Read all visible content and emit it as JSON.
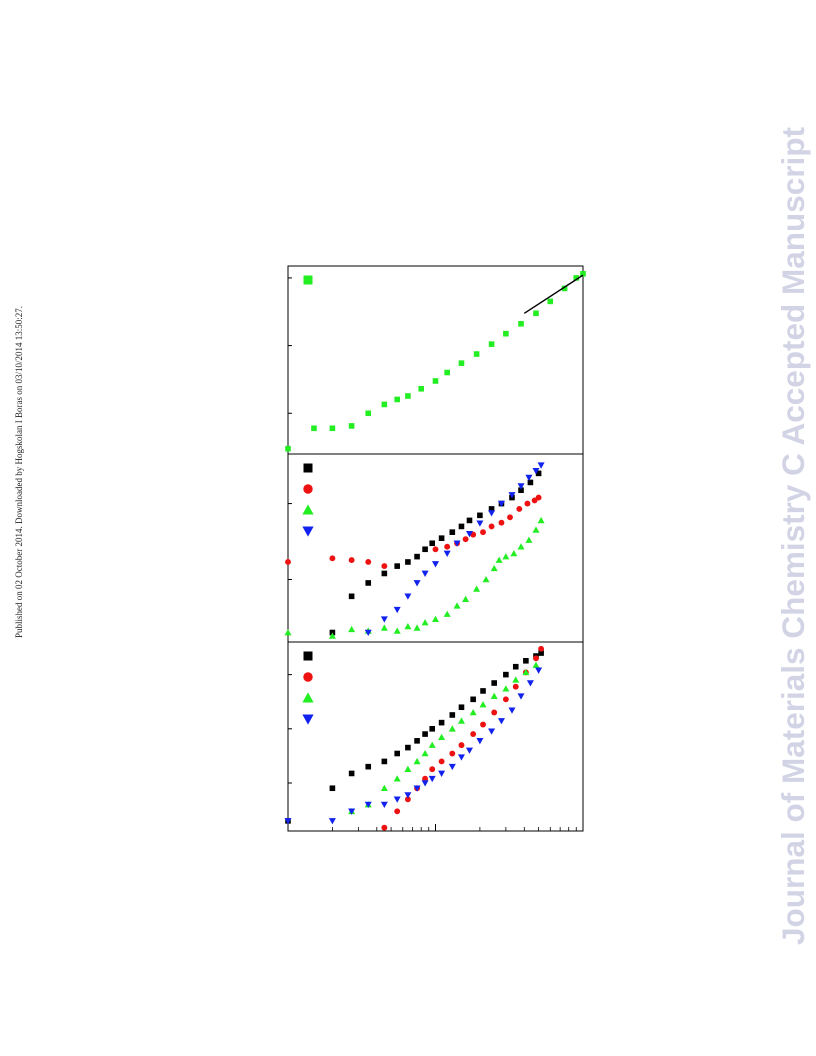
{
  "header_note": "Published on 02 October 2014. Downloaded by Hogskolan I Boras on 03/10/2014 13:50:27.",
  "watermark": {
    "text": "Journal of Materials Chemistry C Accepted Manuscript",
    "color": "#d2d4e6"
  },
  "colors": {
    "black": "#000000",
    "red": "#ee1111",
    "green": "#22ee22",
    "blue": "#1122ee"
  },
  "chart_data": [
    {
      "panel": "top",
      "type": "scatter",
      "x_scale": "log",
      "y_scale": "log",
      "grid": false,
      "legend": "top-left",
      "series": [
        {
          "marker": "square",
          "color": "green",
          "x": [
            1.0,
            1.5,
            2.0,
            2.7,
            3.5,
            4.5,
            5.5,
            6.5,
            8.0,
            10,
            12,
            15,
            19,
            24,
            30,
            38,
            48,
            60,
            75,
            90,
            100
          ],
          "y": [
            0.3,
            0.6,
            0.6,
            0.65,
            1.0,
            1.35,
            1.6,
            1.8,
            2.3,
            3.0,
            4.0,
            5.5,
            7.5,
            10.5,
            15,
            21,
            30,
            45,
            70,
            100,
            115
          ]
        }
      ],
      "fit_line": {
        "x": [
          40,
          100
        ],
        "y": [
          30,
          110
        ]
      }
    },
    {
      "panel": "middle",
      "type": "scatter",
      "x_scale": "log",
      "y_scale": "log",
      "grid": false,
      "legend": "top-left",
      "series": [
        {
          "marker": "square",
          "color": "black",
          "x": [
            2.0,
            2.7,
            3.5,
            4.5,
            5.5,
            6.5,
            7.5,
            8.5,
            9.5,
            11,
            13,
            15,
            17,
            20,
            24,
            28,
            33,
            38,
            44,
            50
          ],
          "y": [
            0.002,
            0.006,
            0.009,
            0.012,
            0.015,
            0.017,
            0.02,
            0.025,
            0.03,
            0.035,
            0.042,
            0.05,
            0.06,
            0.07,
            0.085,
            0.1,
            0.12,
            0.15,
            0.19,
            0.25
          ]
        },
        {
          "marker": "circle",
          "color": "red",
          "x": [
            1.0,
            2.0,
            2.7,
            3.5,
            4.5,
            10,
            12,
            14,
            16,
            18,
            21,
            24,
            28,
            32,
            37,
            42,
            47,
            50
          ],
          "y": [
            0.017,
            0.019,
            0.018,
            0.017,
            0.015,
            0.025,
            0.027,
            0.03,
            0.034,
            0.039,
            0.042,
            0.05,
            0.056,
            0.066,
            0.085,
            0.1,
            0.11,
            0.12
          ]
        },
        {
          "marker": "triangle-up",
          "color": "green",
          "x": [
            1.0,
            2.0,
            2.7,
            3.5,
            4.5,
            5.5,
            6.5,
            7.5,
            8.5,
            10,
            12,
            14,
            16,
            19,
            22,
            25,
            27,
            30,
            34,
            38,
            43,
            48,
            52
          ],
          "y": [
            0.002,
            0.0018,
            0.0022,
            0.0021,
            0.0023,
            0.0021,
            0.0024,
            0.0023,
            0.0027,
            0.003,
            0.0035,
            0.0045,
            0.0055,
            0.0075,
            0.01,
            0.014,
            0.018,
            0.02,
            0.022,
            0.027,
            0.033,
            0.045,
            0.06
          ]
        },
        {
          "marker": "triangle-down",
          "color": "blue",
          "x": [
            3.5,
            4.5,
            5.5,
            6.5,
            7.5,
            8.5,
            10,
            12,
            14,
            17,
            20,
            24,
            28,
            33,
            38,
            43,
            48,
            52
          ],
          "y": [
            0.002,
            0.003,
            0.004,
            0.006,
            0.009,
            0.012,
            0.016,
            0.022,
            0.03,
            0.04,
            0.055,
            0.075,
            0.1,
            0.13,
            0.17,
            0.22,
            0.27,
            0.32
          ]
        }
      ]
    },
    {
      "panel": "bottom",
      "type": "scatter",
      "x_scale": "log",
      "y_scale": "log",
      "grid": false,
      "legend": "top-left",
      "series": [
        {
          "marker": "square",
          "color": "black",
          "x": [
            1.0,
            2.0,
            2.7,
            3.5,
            4.5,
            5.5,
            6.5,
            7.5,
            8.5,
            9.5,
            11,
            13,
            15,
            18,
            21,
            25,
            30,
            35,
            41,
            48,
            52
          ],
          "y": [
            0.0002,
            0.0008,
            0.0015,
            0.002,
            0.0025,
            0.0035,
            0.0045,
            0.006,
            0.008,
            0.01,
            0.013,
            0.018,
            0.025,
            0.035,
            0.05,
            0.07,
            0.1,
            0.14,
            0.18,
            0.22,
            0.25
          ]
        },
        {
          "marker": "circle",
          "color": "red",
          "x": [
            4.5,
            5.5,
            6.5,
            7.5,
            8.5,
            9.5,
            11,
            13,
            15,
            18,
            21,
            25,
            30,
            35,
            41,
            48,
            52
          ],
          "y": [
            0.00015,
            0.0003,
            0.0005,
            0.0008,
            0.0012,
            0.0018,
            0.0025,
            0.0035,
            0.005,
            0.008,
            0.012,
            0.02,
            0.035,
            0.06,
            0.11,
            0.2,
            0.3
          ]
        },
        {
          "marker": "triangle-up",
          "color": "green",
          "x": [
            2.7,
            3.5,
            4.5,
            5.5,
            6.5,
            7.5,
            8.5,
            9.5,
            11,
            13,
            15,
            18,
            21,
            25,
            30,
            35,
            41,
            48
          ],
          "y": [
            0.0003,
            0.0004,
            0.0008,
            0.0012,
            0.0018,
            0.0025,
            0.0035,
            0.005,
            0.007,
            0.01,
            0.014,
            0.02,
            0.028,
            0.04,
            0.055,
            0.08,
            0.11,
            0.15
          ]
        },
        {
          "marker": "triangle-down",
          "color": "blue",
          "x": [
            1.0,
            2.0,
            2.7,
            3.5,
            4.5,
            5.5,
            6.5,
            7.5,
            8.5,
            9.5,
            11,
            13,
            15,
            17,
            20,
            24,
            28,
            33,
            38,
            44,
            50
          ],
          "y": [
            0.0002,
            0.0002,
            0.0003,
            0.0004,
            0.0004,
            0.0005,
            0.0006,
            0.0008,
            0.001,
            0.0012,
            0.0015,
            0.002,
            0.003,
            0.004,
            0.006,
            0.009,
            0.014,
            0.022,
            0.04,
            0.07,
            0.12
          ]
        }
      ]
    }
  ]
}
